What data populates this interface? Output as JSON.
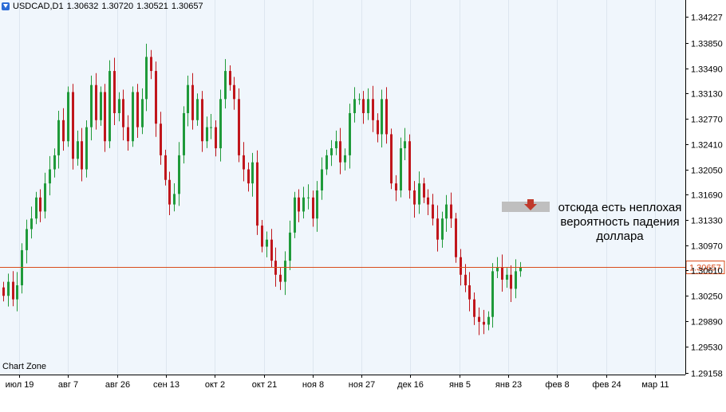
{
  "header": {
    "symbol": "USDCAD,D1",
    "open": "1.30632",
    "high": "1.30720",
    "low": "1.30521",
    "close": "1.30657"
  },
  "watermark": "Chart Zone",
  "price_line": {
    "value": 1.30657,
    "label": "1.30657",
    "color": "#d94b1a"
  },
  "annotation": {
    "lines": [
      "отсюда есть неплохая",
      "вероятность падения",
      "доллара"
    ],
    "arrow_color": "#c0392b"
  },
  "colors": {
    "bull": "#1f9a3a",
    "bear": "#c0161c",
    "background": "#f0f6fc"
  },
  "chart_data": {
    "type": "candlestick",
    "ylim": [
      1.2913,
      1.3446
    ],
    "y_ticks": [
      "1.34227",
      "1.33850",
      "1.33490",
      "1.33130",
      "1.32770",
      "1.32410",
      "1.32050",
      "1.31690",
      "1.31330",
      "1.30970",
      "1.30610",
      "1.30250",
      "1.29890",
      "1.29530",
      "1.29158"
    ],
    "x_ticks": [
      "июл 19",
      "авг 7",
      "авг 26",
      "сен 13",
      "окт 2",
      "окт 21",
      "ноя 8",
      "ноя 27",
      "дек 16",
      "янв 5",
      "янв 23",
      "фев 8",
      "фев 24",
      "мар 11"
    ],
    "closes": [
      1.3025,
      1.3045,
      1.302,
      1.304,
      1.309,
      1.312,
      1.3135,
      1.3165,
      1.3145,
      1.3185,
      1.3205,
      1.3225,
      1.3275,
      1.3245,
      1.3315,
      1.322,
      1.3245,
      1.3205,
      1.3265,
      1.3325,
      1.3275,
      1.3315,
      1.3245,
      1.3345,
      1.3285,
      1.3305,
      1.3265,
      1.3245,
      1.3315,
      1.3265,
      1.3305,
      1.3365,
      1.3345,
      1.327,
      1.3225,
      1.319,
      1.3155,
      1.317,
      1.3225,
      1.3285,
      1.3325,
      1.3275,
      1.3305,
      1.3245,
      1.3265,
      1.3265,
      1.3235,
      1.3305,
      1.3345,
      1.3325,
      1.3305,
      1.3225,
      1.3205,
      1.3185,
      1.3215,
      1.3125,
      1.3095,
      1.3105,
      1.3075,
      1.3055,
      1.3045,
      1.3075,
      1.3115,
      1.3165,
      1.3145,
      1.3165,
      1.3165,
      1.3135,
      1.3175,
      1.3205,
      1.3225,
      1.3235,
      1.3245,
      1.3215,
      1.3225,
      1.3285,
      1.3305,
      1.3305,
      1.3285,
      1.3305,
      1.3275,
      1.3255,
      1.3305,
      1.3255,
      1.3185,
      1.3175,
      1.3235,
      1.3245,
      1.3175,
      1.3155,
      1.3185,
      1.3165,
      1.3155,
      1.3135,
      1.3105,
      1.3135,
      1.3155,
      1.3135,
      1.308,
      1.3055,
      1.304,
      1.302,
      1.2995,
      1.2988,
      1.2984,
      1.2995,
      1.306,
      1.3065,
      1.3048,
      1.3055,
      1.3035,
      1.306,
      1.3065
    ]
  }
}
